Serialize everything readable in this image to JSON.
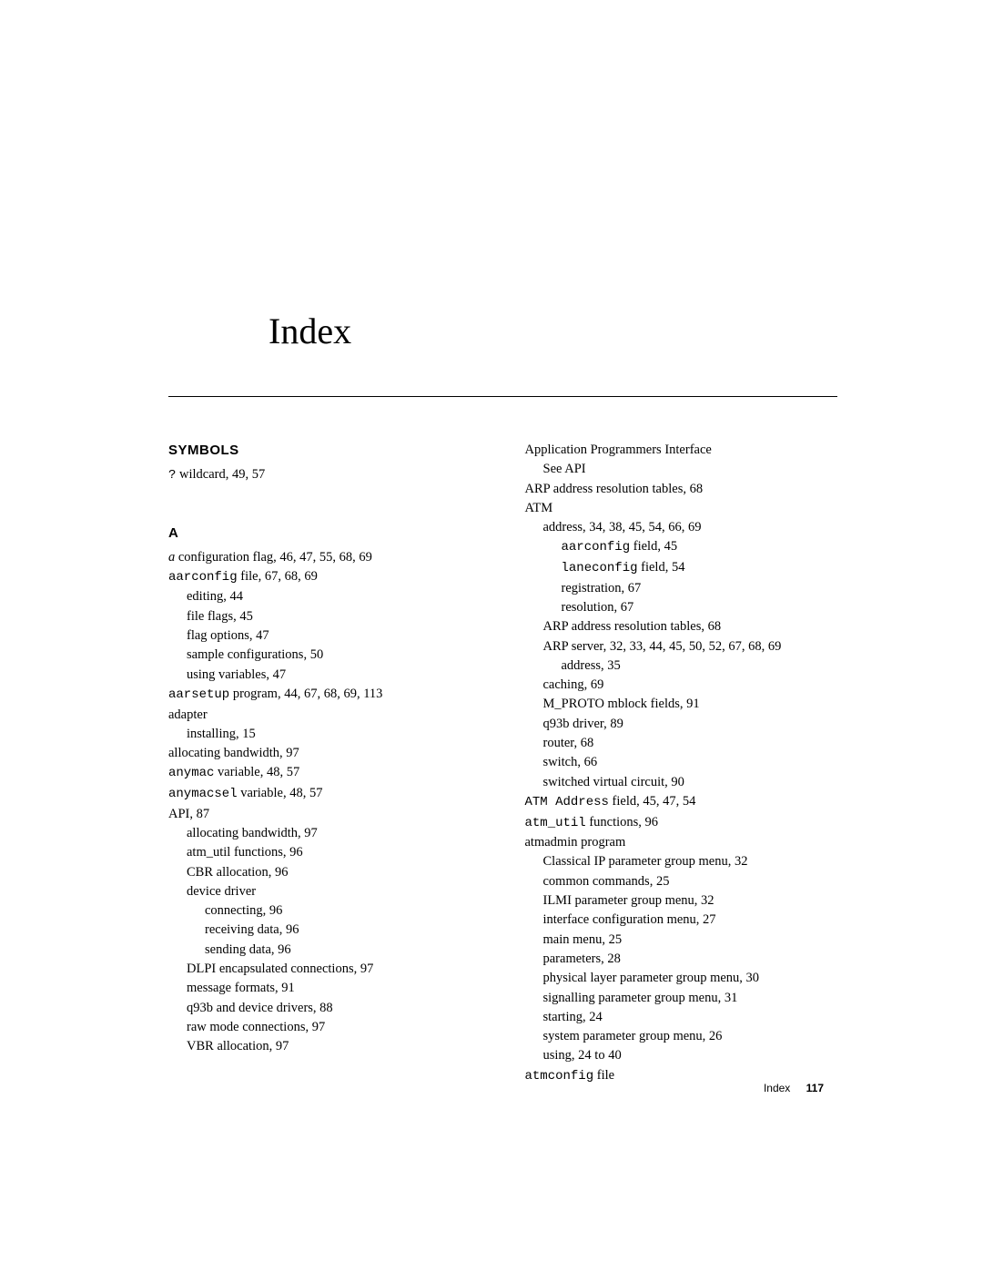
{
  "title": "Index",
  "sections": {
    "symbols_heading": "SYMBOLS",
    "a_heading": "A"
  },
  "left": {
    "sym_wildcard_mono": "?",
    "sym_wildcard_rest": " wildcard,  49, 57",
    "a_config_italic": "a",
    "a_config_rest": " configuration flag,  46, 47, 55, 68, 69",
    "aarconfig_mono": "aarconfig",
    "aarconfig_rest": " file,  67, 68, 69",
    "editing": "editing,  44",
    "file_flags": "file flags,  45",
    "flag_options": "flag options,  47",
    "sample_config": "sample configurations,  50",
    "using_variables": "using variables,  47",
    "aarsetup_mono": "aarsetup",
    "aarsetup_rest": " program,  44, 67, 68, 69, 113",
    "adapter": "adapter",
    "installing": "installing,  15",
    "alloc_bw": "allocating bandwidth,  97",
    "anymac_mono": "anymac",
    "anymac_rest": " variable,  48, 57",
    "anymacsel_mono": "anymacsel",
    "anymacsel_rest": " variable,  48, 57",
    "api": "API,  87",
    "api_alloc_bw": "allocating bandwidth,  97",
    "api_atm_util": "atm_util functions,  96",
    "api_cbr": "CBR allocation,  96",
    "api_dev_driver": "device driver",
    "api_connecting": "connecting,  96",
    "api_recv": "receiving data,  96",
    "api_send": "sending data,  96",
    "api_dlpi": "DLPI encapsulated connections,  97",
    "api_msg_fmt": "message formats,  91",
    "api_q93b": "q93b and device drivers,  88",
    "api_raw": "raw mode connections,  97",
    "api_vbr": "VBR allocation,  97"
  },
  "right": {
    "app_prog": "Application Programmers Interface",
    "see_api": "See API",
    "arp_tables": "ARP address resolution tables,  68",
    "atm": "ATM",
    "atm_address": "address,  34, 38, 45, 54, 66, 69",
    "atm_aarconfig_mono": "aarconfig",
    "atm_aarconfig_rest": " field,  45",
    "atm_laneconfig_mono": "laneconfig",
    "atm_laneconfig_rest": " field,  54",
    "atm_reg": "registration,  67",
    "atm_res": "resolution,  67",
    "atm_arp_tables": "ARP address resolution tables,  68",
    "atm_arp_server": "ARP server,  32, 33, 44, 45, 50, 52, 67, 68, 69",
    "atm_arp_addr": "address,  35",
    "atm_caching": "caching,  69",
    "atm_mproto": "M_PROTO mblock fields,  91",
    "atm_q93b": "q93b driver,  89",
    "atm_router": "router,  68",
    "atm_switch": "switch,  66",
    "atm_svc": "switched virtual circuit,  90",
    "atm_addr_field_mono": "ATM Address",
    "atm_addr_field_rest": " field,  45, 47, 54",
    "atm_util_mono": "atm_util",
    "atm_util_rest": " functions,  96",
    "atmadmin": "atmadmin program",
    "atmadmin_classical": "Classical IP parameter group menu,  32",
    "atmadmin_common": "common commands,  25",
    "atmadmin_ilmi": "ILMI parameter group menu,  32",
    "atmadmin_iface": "interface configuration menu,  27",
    "atmadmin_main": "main menu,  25",
    "atmadmin_params": "parameters,  28",
    "atmadmin_phys": "physical layer parameter group menu,  30",
    "atmadmin_sig": "signalling parameter group menu,  31",
    "atmadmin_start": "starting,  24",
    "atmadmin_sys": "system parameter group menu,  26",
    "atmadmin_using": "using,  24 to 40",
    "atmconfig_mono": "atmconfig",
    "atmconfig_rest": " file"
  },
  "footer": {
    "label": "Index",
    "page": "117"
  }
}
